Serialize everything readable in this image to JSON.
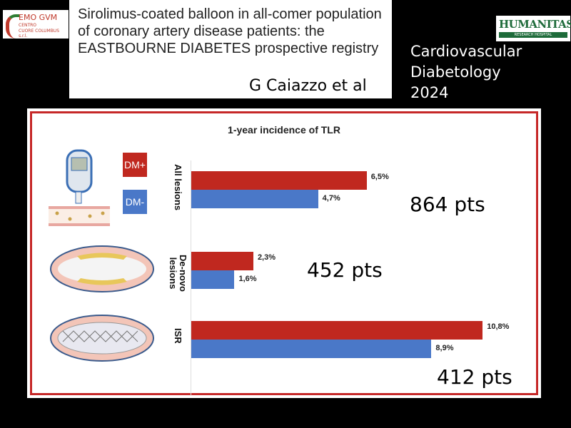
{
  "logos": {
    "left": {
      "line1": "EMO GVM",
      "line2": "CENTRO",
      "line3": "CUORE COLUMBUS s.r.l."
    },
    "right": {
      "name": "HUMANITAS",
      "sub": "RESEARCH HOSPITAL"
    }
  },
  "header": {
    "title": "Sirolimus-coated balloon in all-comer population of coronary artery disease patients: the EASTBOURNE DIABETES prospective registry",
    "author": "G Caiazzo et al",
    "journal": [
      "Cardiovascular",
      "Diabetology",
      "2024"
    ]
  },
  "chart_data": {
    "type": "bar",
    "orientation": "horizontal",
    "title": "1-year incidence of TLR",
    "categories": [
      "All lesions",
      "De-novo lesions",
      "ISR"
    ],
    "series": [
      {
        "name": "DM+",
        "color": "#c0281f",
        "values": [
          6.5,
          2.3,
          10.8
        ],
        "labels": [
          "6,5%",
          "2,3%",
          "10,8%"
        ]
      },
      {
        "name": "DM-",
        "color": "#4a78c8",
        "values": [
          4.7,
          1.6,
          8.9
        ],
        "labels": [
          "4,7%",
          "1,6%",
          "8,9%"
        ]
      }
    ],
    "annotations": [
      "864 pts",
      "452 pts",
      "412 pts"
    ],
    "unit": "%"
  }
}
